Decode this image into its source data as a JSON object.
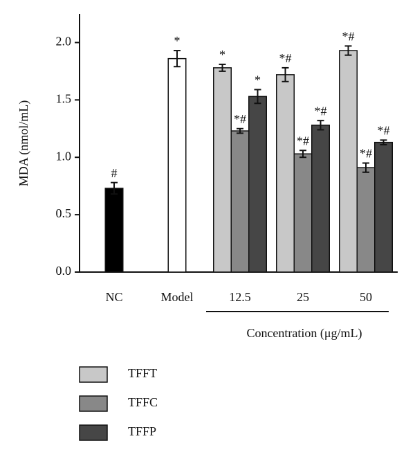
{
  "chart_data": {
    "type": "bar",
    "ylabel": "MDA (nmol/mL)",
    "group_label": "Concentration (μg/mL)",
    "categories": [
      "NC",
      "Model",
      "12.5",
      "25",
      "50"
    ],
    "single_bars": {
      "values": [
        0.73,
        1.86,
        null,
        null,
        null
      ],
      "errors": [
        0.05,
        0.07,
        null,
        null,
        null
      ],
      "colors": [
        "#000000",
        "#ffffff",
        null,
        null,
        null
      ],
      "annotations": [
        "#",
        "*",
        null,
        null,
        null
      ]
    },
    "series": [
      {
        "name": "TFFT",
        "color": "#c8c8c8",
        "values": [
          null,
          null,
          1.78,
          1.72,
          1.93
        ],
        "errors": [
          null,
          null,
          0.03,
          0.06,
          0.04
        ],
        "annotations": [
          null,
          null,
          "*",
          "*#",
          "*#"
        ]
      },
      {
        "name": "TFFC",
        "color": "#888888",
        "values": [
          null,
          null,
          1.23,
          1.03,
          0.91
        ],
        "errors": [
          null,
          null,
          0.02,
          0.03,
          0.04
        ],
        "annotations": [
          null,
          null,
          "*#",
          "*#",
          "*#"
        ]
      },
      {
        "name": "TFFP",
        "color": "#464646",
        "values": [
          null,
          null,
          1.53,
          1.28,
          1.13
        ],
        "errors": [
          null,
          null,
          0.06,
          0.04,
          0.02
        ],
        "annotations": [
          null,
          null,
          "*",
          "*#",
          "*#"
        ]
      }
    ],
    "ylim": [
      0,
      2.25
    ],
    "yticks": [
      {
        "value": 0,
        "label": "0.0"
      },
      0.5,
      {
        "value": 1,
        "label": "1.0"
      },
      1.5,
      {
        "value": 2,
        "label": "2.0"
      }
    ],
    "legend": "bottom-left"
  }
}
